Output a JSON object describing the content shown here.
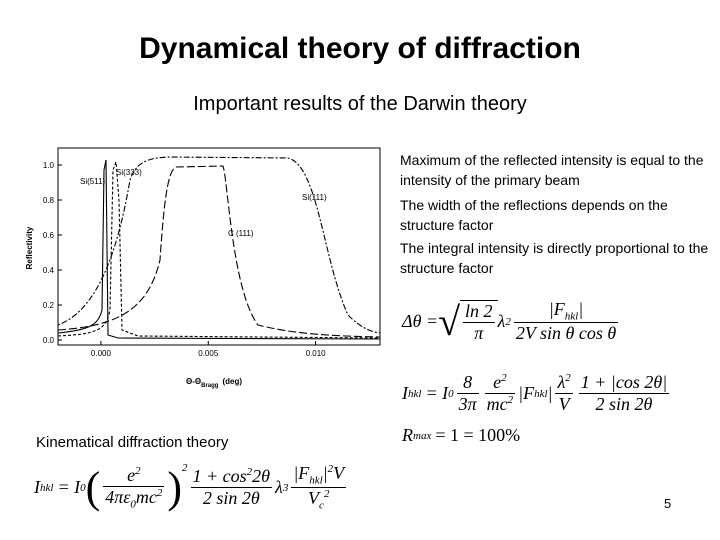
{
  "title": "Dynamical theory of diffraction",
  "subtitle": "Important results of the Darwin theory",
  "figure": {
    "y_label": "Reflectivity",
    "x_label": "Θ-Θ",
    "x_label_sub": "Bragg",
    "x_label_unit": "(deg)",
    "ylim": [
      0,
      1
    ],
    "yticks": [
      {
        "value": 0,
        "label": "0.0"
      },
      {
        "value": 0.2,
        "label": "0.2"
      },
      {
        "value": 0.4,
        "label": "0.4"
      },
      {
        "value": 0.6,
        "label": "0.6"
      },
      {
        "value": 0.8,
        "label": "0.8"
      },
      {
        "value": 1,
        "label": "1.0"
      }
    ],
    "xlim": [
      -0.002,
      0.013
    ],
    "xticks": [
      {
        "value": 0,
        "label": "0.000"
      },
      {
        "value": 0.005,
        "label": "0.005"
      },
      {
        "value": 0.01,
        "label": "0.010"
      }
    ],
    "curve_labels": [
      "Si(511)",
      "Si(333)",
      "Si(111)",
      "C (111)"
    ]
  },
  "bullets": [
    "Maximum of the reflected intensity is equal to the intensity of the primary beam",
    "The width of the reflections depends on the structure factor",
    "The integral intensity is directly proportional to the structure factor"
  ],
  "eq_width": {
    "lhs": "Δθ =",
    "sqrt": "√",
    "sqrt_num": "ln 2",
    "sqrt_den": "π",
    "lambda": "λ",
    "lambda_exp": "2",
    "num_f": "|F",
    "num_sub": "hkl",
    "num_bar": "|",
    "den": "2V sin θ cos θ"
  },
  "eq_intensity": {
    "lhs": "I",
    "lhs_sub": "hkl",
    "eq": "= I",
    "eq_sub": "0",
    "f1_num": "8",
    "f1_den": "3π",
    "f2_num": "e",
    "f2_num_exp": "2",
    "f2_den": "mc",
    "f2_den_exp": "2",
    "f_mid": "|F",
    "f_mid_sub": "hkl",
    "f_mid_bar": "|",
    "f3_num": "λ",
    "f3_num_exp": "2",
    "f3_den": "V",
    "f4_num": "1 + |cos 2θ|",
    "f4_den": "2 sin 2θ"
  },
  "eq_rmax": {
    "lhs": "R",
    "lhs_sub": "max",
    "rhs": "= 1 = 100%"
  },
  "kinematical": {
    "label": "Kinematical diffraction theory",
    "lhs": "I",
    "lhs_sub": "hkl",
    "eq": "= I",
    "eq_sub": "0",
    "open": "(",
    "in_num": "e",
    "in_num_exp": "2",
    "in_den": "4πε",
    "in_den_sub": "0",
    "in_den_rest": "mc",
    "in_den_exp": "2",
    "close": ")",
    "outer_exp": "2",
    "f1_num": "1 + cos",
    "f1_num_exp": "2",
    "f1_num_rest": "2θ",
    "f1_den": "2 sin 2θ",
    "lambda": "λ",
    "lambda_exp": "3",
    "f2_num": "|F",
    "f2_num_sub": "hkl",
    "f2_num_bar": "|",
    "f2_num_exp": "2",
    "f2_num_rest": "V",
    "f2_den": "V",
    "f2_den_sub": "c",
    "f2_den_exp": "2"
  },
  "page_number": "5"
}
